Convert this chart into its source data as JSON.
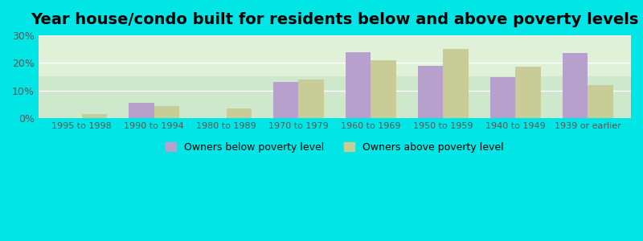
{
  "title": "Year house/condo built for residents below and above poverty levels",
  "categories": [
    "1995 to 1998",
    "1990 to 1994",
    "1980 to 1989",
    "1970 to 1979",
    "1960 to 1969",
    "1950 to 1959",
    "1940 to 1949",
    "1939 or earlier"
  ],
  "below_poverty": [
    0,
    5.5,
    0,
    13.0,
    24.0,
    19.0,
    15.0,
    23.5
  ],
  "above_poverty": [
    1.5,
    4.5,
    3.5,
    14.0,
    21.0,
    25.0,
    18.5,
    12.0
  ],
  "below_color": "#b8a0cc",
  "above_color": "#c8cc96",
  "background_color": "#e8f5e0",
  "outer_background": "#00e5e5",
  "ylim": [
    0,
    30
  ],
  "yticks": [
    0,
    10,
    20,
    30
  ],
  "ytick_labels": [
    "0%",
    "10%",
    "20%",
    "30%"
  ],
  "legend_below": "Owners below poverty level",
  "legend_above": "Owners above poverty level",
  "title_fontsize": 14,
  "bar_width": 0.35
}
